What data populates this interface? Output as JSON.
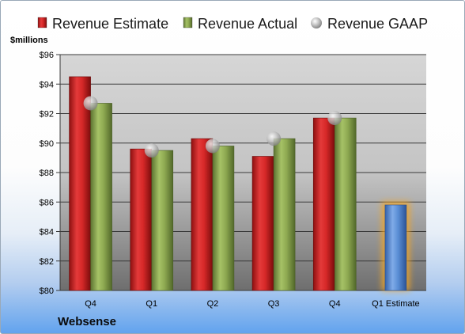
{
  "company": "Websense",
  "colors": {
    "estimate": "#d92b2b",
    "actual": "#8faa52",
    "gaap": "#b8b8b8",
    "forecast": "#5b8fd6",
    "forecast_glow": "#f5a623"
  },
  "chart_data": {
    "type": "bar",
    "ylabel": "$millions",
    "ylim": [
      80,
      96
    ],
    "yticks": [
      80,
      82,
      84,
      86,
      88,
      90,
      92,
      94,
      96
    ],
    "ytick_labels": [
      "$80",
      "$82",
      "$84",
      "$86",
      "$88",
      "$90",
      "$92",
      "$94",
      "$96"
    ],
    "categories": [
      "Q4",
      "Q1",
      "Q2",
      "Q3",
      "Q4",
      "Q1 Estimate"
    ],
    "legend_position": "top",
    "grid": true,
    "series": [
      {
        "name": "Revenue Estimate",
        "values": [
          94.5,
          89.6,
          90.3,
          89.1,
          91.7,
          85.8
        ],
        "kind": "bar"
      },
      {
        "name": "Revenue Actual",
        "values": [
          92.7,
          89.5,
          89.8,
          90.3,
          91.7,
          null
        ],
        "kind": "bar"
      },
      {
        "name": "Revenue GAAP",
        "values": [
          92.7,
          89.5,
          89.8,
          90.3,
          91.7,
          null
        ],
        "kind": "marker"
      }
    ]
  }
}
